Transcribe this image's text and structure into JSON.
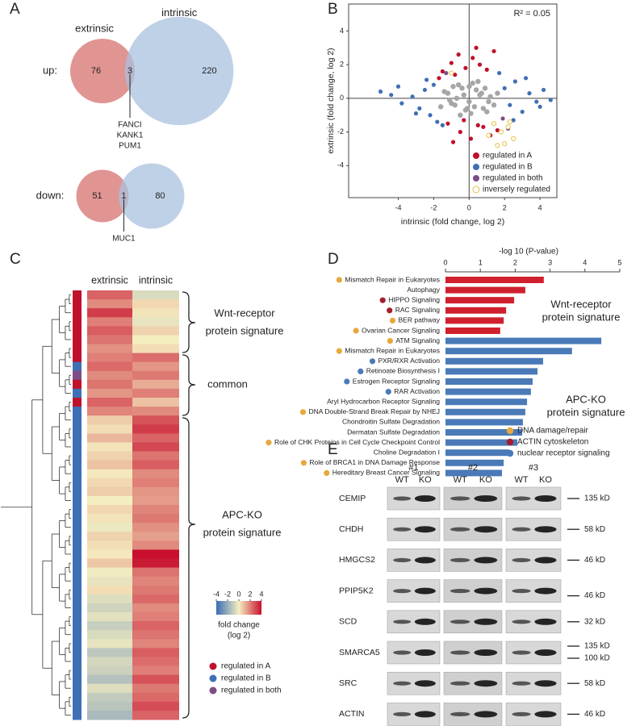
{
  "panel_labels": [
    "A",
    "B",
    "C",
    "D",
    "E"
  ],
  "venn": {
    "set_labels": [
      "extrinsic",
      "intrinsic"
    ],
    "colors": [
      "#de8987",
      "#a9c2df"
    ],
    "rows": [
      {
        "label": "up:",
        "counts": [
          76,
          3,
          220
        ],
        "overlap_genes": [
          "FANCI",
          "KANK1",
          "PUM1"
        ]
      },
      {
        "label": "down:",
        "counts": [
          51,
          1,
          80
        ],
        "overlap_genes": [
          "MUC1"
        ]
      }
    ]
  },
  "chart_data": [
    {
      "type": "scatter",
      "annotation": "R² = 0.05",
      "x_label": "intrinsic (fold change, log 2)",
      "y_label": "extrinsic (fold change, log 2)",
      "xlim": [
        -6.8,
        4.95
      ],
      "ylim": [
        -5.9,
        5.6
      ],
      "xticks": [
        -4,
        -2,
        0,
        2,
        4
      ],
      "yticks": [
        -4,
        -2,
        0,
        2,
        4
      ],
      "legend": "lower right",
      "series": [
        {
          "color": "#a6a6a6",
          "x": [
            -1.2,
            -0.8,
            -0.4,
            0,
            0.4,
            0.8,
            1.2,
            -1,
            -0.6,
            -0.2,
            0.2,
            0.6,
            1,
            -1.4,
            1.4,
            -0.5,
            0.5,
            -0.9,
            0.9,
            0.1,
            -0.3,
            0.3,
            -1.1,
            1.1,
            -0.7,
            0.7,
            -1.6,
            1.6,
            0,
            -0.1
          ],
          "values": [
            0.3,
            -0.4,
            0.6,
            -0.2,
            0.5,
            -0.6,
            0.1,
            -0.3,
            0.8,
            -0.7,
            0.9,
            0.2,
            -0.8,
            0.4,
            -0.4,
            -1.0,
            1.0,
            0.7,
            0.6,
            -0.9,
            0.2,
            -0.5,
            -0.1,
            -0.2,
            0.0,
            0.3,
            -0.5,
            0.3,
            0.7,
            -0.6
          ]
        },
        {
          "name": "regulated in A",
          "color": "#c0102a",
          "x": [
            -1.5,
            -1.0,
            -0.6,
            -0.2,
            0.2,
            0.6,
            1.0,
            1.4,
            -0.8,
            0.4,
            -1.2,
            -0.5,
            0.1,
            0.8,
            1.2,
            -0.3,
            0.5,
            -0.9,
            1.6,
            -1.7
          ],
          "values": [
            1.6,
            2.1,
            2.6,
            1.8,
            2.4,
            2.0,
            1.7,
            2.8,
            1.4,
            3.0,
            -1.5,
            -2.0,
            -2.4,
            -1.7,
            -2.2,
            -1.3,
            -1.6,
            -2.6,
            -1.9,
            1.2
          ]
        },
        {
          "name": "regulated in B",
          "color": "#3f6fb5",
          "x": [
            -5.0,
            -4.4,
            -3.8,
            -3.2,
            -2.8,
            -2.5,
            -2.2,
            -2.0,
            -1.8,
            2.0,
            2.3,
            2.6,
            3.0,
            3.4,
            3.8,
            4.2,
            4.6,
            -3.0,
            3.2,
            -2.4,
            2.5,
            -1.5,
            1.7,
            -4.0,
            4.0
          ],
          "values": [
            0.4,
            0.2,
            -0.3,
            0.1,
            -0.6,
            0.5,
            -1.0,
            0.8,
            -1.4,
            0.6,
            -0.4,
            1.0,
            -0.8,
            0.3,
            -0.2,
            0.5,
            -0.1,
            -0.9,
            1.2,
            1.1,
            -1.3,
            -1.6,
            1.5,
            0.7,
            -0.5
          ]
        },
        {
          "name": "regulated in both",
          "color": "#7d4c86",
          "x": [
            -1.3,
            1.9,
            2.2
          ],
          "values": [
            1.5,
            -1.2,
            -1.8
          ]
        },
        {
          "name": "inversely regulated",
          "color": "#e3c443",
          "hollow": true,
          "x": [
            -1.0,
            1.4,
            1.8,
            2.0,
            2.2,
            2.5,
            1.6,
            2.3,
            1.1
          ],
          "values": [
            1.5,
            -1.5,
            -2.0,
            -2.7,
            -1.7,
            -2.4,
            -2.8,
            -1.4,
            -2.2
          ]
        }
      ]
    },
    {
      "type": "barh",
      "x_label": "-log 10 (P-value)",
      "xlim": [
        0,
        5
      ],
      "xticks": [
        0,
        1,
        2,
        3,
        4,
        5
      ],
      "categories": [
        "Mismatch Repair in Eukaryotes",
        "Autophagy",
        "HIPPO Signaling",
        "RAC Signaling",
        "BER pathway",
        "Ovarian Cancer Signaling",
        "ATM Signaling",
        "Mismatch Repair in Eukaryotes",
        "PXR/RXR Activation",
        "Retinoate Biosynthesis I",
        "Estrogen Receptor Signaling",
        "RAR Activation",
        "Aryl Hydrocarbon Receptor Signaling",
        "DNA Double-Strand Break Repair by NHEJ",
        "Chondroitin Sulfate Degradation",
        "Dermatan Sulfate Degradation",
        "Role of CHK Proteins in Cell Cycle Checkpoint Control",
        "Choline Degradation I",
        "Role of BRCA1 in DNA Damage Response",
        "Hereditary Breast Cancer Signaling"
      ],
      "values": [
        2.82,
        2.29,
        1.97,
        1.74,
        1.67,
        1.57,
        4.47,
        3.63,
        2.8,
        2.64,
        2.5,
        2.45,
        2.34,
        2.29,
        2.22,
        2.2,
        2.06,
        1.83,
        1.67,
        1.62
      ],
      "bar_colors": [
        "#d0202e",
        "#d0202e",
        "#d0202e",
        "#d0202e",
        "#d0202e",
        "#d0202e",
        "#4a7ab8",
        "#4a7ab8",
        "#4a7ab8",
        "#4a7ab8",
        "#4a7ab8",
        "#4a7ab8",
        "#4a7ab8",
        "#4a7ab8",
        "#4a7ab8",
        "#4a7ab8",
        "#4a7ab8",
        "#4a7ab8",
        "#4a7ab8",
        "#4a7ab8"
      ],
      "dot_colors": [
        "#e8a83c",
        null,
        "#a51c30",
        "#a51c30",
        "#e8a83c",
        "#e8a83c",
        "#e8a83c",
        "#e8a83c",
        "#4a7ab8",
        "#4a7ab8",
        "#4a7ab8",
        "#4a7ab8",
        null,
        "#e8a83c",
        null,
        null,
        "#e8a83c",
        null,
        "#e8a83c",
        "#e8a83c"
      ],
      "legend": [
        {
          "name": "DNA damage/repair",
          "color": "#e8a83c"
        },
        {
          "name": "ACTIN cytoskeleton",
          "color": "#a51c30"
        },
        {
          "name": "nuclear receptor signaling",
          "color": "#4a7ab8"
        }
      ],
      "annotations": [
        {
          "lines": [
            "Wnt-receptor",
            "protein signature"
          ]
        },
        {
          "lines": [
            "APC-KO",
            "protein signature"
          ]
        }
      ]
    }
  ],
  "heatmap": {
    "columns": [
      {
        "name": "extrinsic",
        "values": [
          2.5,
          1.8,
          3.2,
          2.0,
          2.6,
          2.2,
          1.7,
          2.0,
          2.4,
          1.8,
          2.2,
          1.6,
          2.5,
          1.9,
          0.6,
          0.3,
          1.0,
          0.2,
          0.5,
          0.8,
          0.1,
          0.4,
          0.6,
          0.0,
          0.4,
          0.2,
          -0.2,
          0.5,
          0.3,
          0.1,
          0.7,
          -0.1,
          -0.3,
          0.3,
          -0.5,
          -0.8,
          -0.4,
          -1.0,
          -0.6,
          -0.3,
          -1.2,
          -0.7,
          -0.9,
          -1.4,
          -0.5,
          -1.1,
          -1.3,
          -1.6
        ]
      },
      {
        "name": "intrinsic",
        "values": [
          -0.6,
          0.4,
          0.2,
          -0.3,
          0.5,
          0.0,
          0.3,
          2.3,
          1.6,
          2.1,
          1.2,
          2.0,
          0.8,
          1.8,
          2.8,
          3.2,
          2.5,
          3.0,
          2.2,
          2.6,
          1.8,
          2.0,
          1.6,
          1.5,
          1.9,
          2.1,
          1.7,
          1.4,
          1.8,
          4.0,
          3.8,
          2.2,
          1.9,
          2.1,
          2.4,
          1.8,
          2.0,
          2.5,
          2.2,
          1.9,
          2.6,
          2.3,
          2.0,
          2.8,
          2.1,
          2.4,
          2.9,
          2.5
        ]
      }
    ],
    "row_groups": [
      0,
      0,
      0,
      0,
      0,
      0,
      0,
      0,
      1,
      2,
      0,
      1,
      0,
      1,
      1,
      1,
      1,
      1,
      1,
      1,
      1,
      1,
      1,
      1,
      1,
      1,
      1,
      1,
      1,
      1,
      1,
      1,
      1,
      1,
      1,
      1,
      1,
      1,
      1,
      1,
      1,
      1,
      1,
      1,
      1,
      1,
      1,
      1
    ],
    "legend": [
      {
        "name": "regulated in A",
        "color": "#c0102a"
      },
      {
        "name": "regulated in B",
        "color": "#3f6fb5"
      },
      {
        "name": "regulated in both",
        "color": "#7d4c86"
      }
    ],
    "colorbar": {
      "label": [
        "fold change",
        "(log 2)"
      ],
      "lim": [
        -4,
        4
      ],
      "ticks": [
        -4,
        -2,
        0,
        2,
        4
      ],
      "colors": [
        "#3a6db5",
        "#f5eec0",
        "#c8102e"
      ]
    },
    "brace_labels": [
      {
        "lines": [
          "Wnt-receptor",
          "protein signature"
        ]
      },
      {
        "lines": [
          "common"
        ]
      },
      {
        "lines": [
          "APC-KO",
          "protein signature"
        ]
      }
    ]
  },
  "western_blot": {
    "replicates": [
      "#1",
      "#2",
      "#3"
    ],
    "lanes": [
      "WT",
      "KO"
    ],
    "proteins": [
      {
        "name": "CEMIP",
        "markers": [
          "135 kD"
        ]
      },
      {
        "name": "CHDH",
        "markers": [
          "58 kD"
        ]
      },
      {
        "name": "HMGCS2",
        "markers": [
          "46 kD"
        ]
      },
      {
        "name": "PPIP5K2",
        "markers": [
          "46 kD"
        ]
      },
      {
        "name": "SCD",
        "markers": [
          "32 kD"
        ]
      },
      {
        "name": "SMARCA5",
        "markers": [
          "135 kD",
          "100 kD"
        ]
      },
      {
        "name": "SRC",
        "markers": [
          "58 kD"
        ]
      },
      {
        "name": "ACTIN",
        "markers": [
          "46 kD"
        ]
      }
    ]
  }
}
